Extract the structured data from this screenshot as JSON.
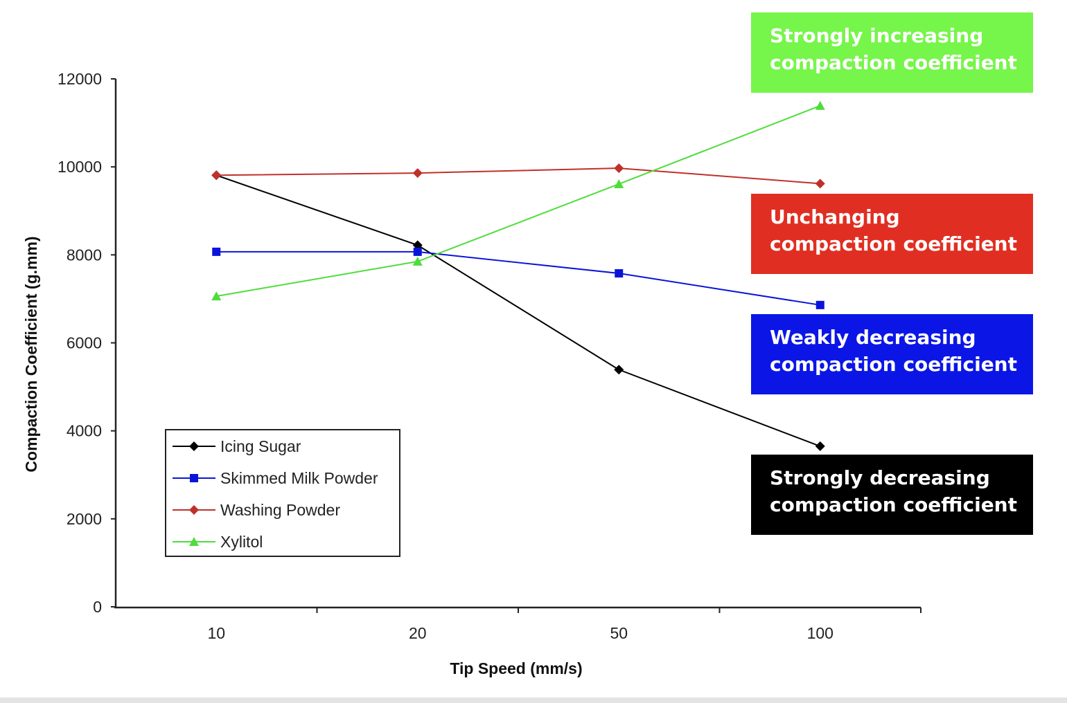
{
  "chart_data": {
    "type": "line",
    "title": "",
    "xlabel": "Tip Speed (mm/s)",
    "ylabel": "Compaction Coefficient (g.mm)",
    "categories": [
      "10",
      "20",
      "50",
      "100"
    ],
    "ylim": [
      0,
      12000
    ],
    "yticks": [
      0,
      2000,
      4000,
      6000,
      8000,
      10000,
      12000
    ],
    "grid": false,
    "legend_position": "bottom-left",
    "series": [
      {
        "name": "Icing Sugar",
        "color": "#000000",
        "marker": "diamond",
        "values": [
          9810,
          8220,
          5390,
          3650
        ]
      },
      {
        "name": "Skimmed Milk Powder",
        "color": "#0a14d8",
        "marker": "square",
        "values": [
          8070,
          8070,
          7580,
          6860
        ]
      },
      {
        "name": "Washing Powder",
        "color": "#c0302a",
        "marker": "diamond",
        "values": [
          9810,
          9860,
          9970,
          9620
        ]
      },
      {
        "name": "Xylitol",
        "color": "#4fdc3c",
        "marker": "triangle",
        "values": [
          7060,
          7850,
          9610,
          11390
        ]
      }
    ],
    "annotations": [
      {
        "line1": "Strongly increasing",
        "line2": "compaction coefficient",
        "color": "#76f54a"
      },
      {
        "line1": "Unchanging",
        "line2": "compaction coefficient",
        "color": "#e02f22"
      },
      {
        "line1": "Weakly decreasing",
        "line2": "compaction coefficient",
        "color": "#0b16e6"
      },
      {
        "line1": "Strongly decreasing",
        "line2": "compaction coefficient",
        "color": "#000000"
      }
    ]
  }
}
